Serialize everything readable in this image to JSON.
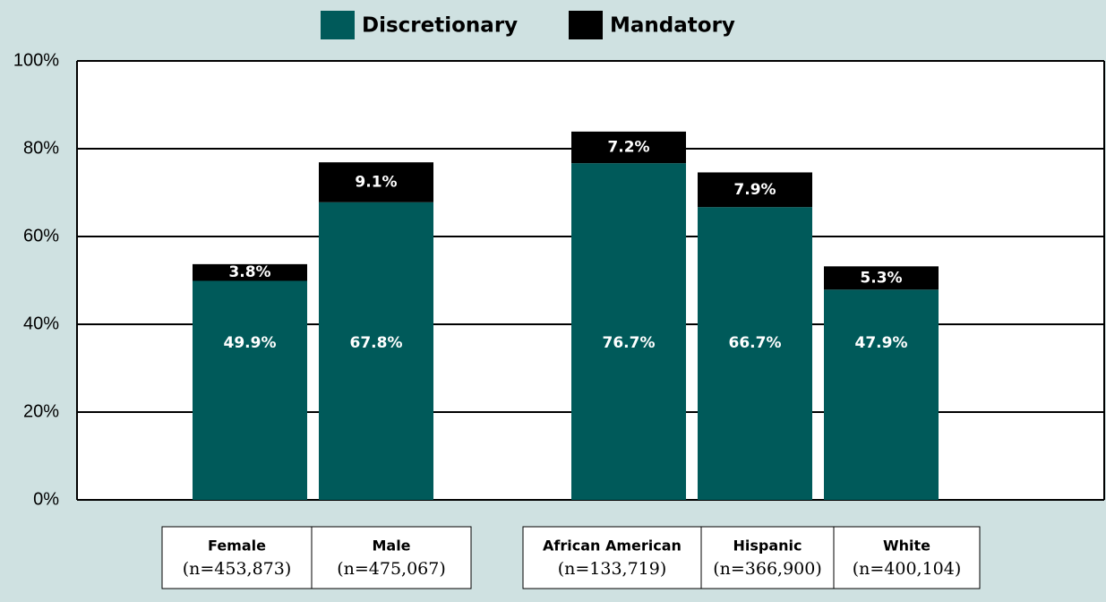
{
  "chart_data": {
    "type": "stacked_bar",
    "categories": [
      "Female",
      "Male",
      null,
      "African American",
      "Hispanic",
      "White"
    ],
    "category_notes": [
      "(n=453,873)",
      "(n=475,067)",
      null,
      "(n=133,719)",
      "(n=366,900)",
      "(n=400,104)"
    ],
    "series": [
      {
        "name": "Discretionary",
        "color": "#005a5a",
        "values": [
          49.9,
          67.8,
          null,
          76.7,
          66.7,
          47.9
        ],
        "value_labels": [
          "49.9%",
          "67.8%",
          null,
          "76.7%",
          "66.7%",
          "47.9%"
        ]
      },
      {
        "name": "Mandatory",
        "color": "#000000",
        "values": [
          3.8,
          9.1,
          null,
          7.2,
          7.9,
          5.3
        ],
        "value_labels": [
          "3.8%",
          "9.1%",
          null,
          "7.2%",
          "7.9%",
          "5.3%"
        ]
      }
    ],
    "ylim": [
      0,
      100
    ],
    "yticks": [
      {
        "value": 0,
        "label": "0%"
      },
      {
        "value": 20,
        "label": "20%"
      },
      {
        "value": 40,
        "label": "40%"
      },
      {
        "value": 60,
        "label": "60%"
      },
      {
        "value": 80,
        "label": "80%"
      },
      {
        "value": 100,
        "label": "100%"
      }
    ],
    "grid": true,
    "legend": "top"
  }
}
